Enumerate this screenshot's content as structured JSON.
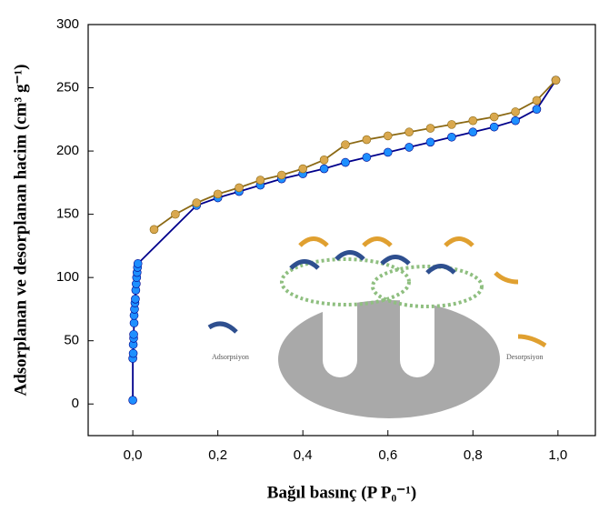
{
  "chart_data": {
    "type": "line",
    "x_label": "Bağıl basınç (P P₀⁻¹)",
    "y_label": "Adsorplanan ve desorplanan hacim (cm³ g⁻¹)",
    "xlim": [
      -0.105,
      1.088
    ],
    "ylim": [
      -25,
      300
    ],
    "xticks": [
      {
        "value": 0,
        "label": "0,0"
      },
      {
        "value": 0.2,
        "label": "0,2"
      },
      {
        "value": 0.4,
        "label": "0,4"
      },
      {
        "value": 0.6,
        "label": "0,6"
      },
      {
        "value": 0.8,
        "label": "0,8"
      },
      {
        "value": 1,
        "label": "1,0"
      }
    ],
    "yticks": [
      0,
      50,
      100,
      150,
      200,
      250,
      300
    ],
    "annotations": [
      "Adsorpsiyon",
      "Desorpsiyon"
    ],
    "series": [
      {
        "color": "#1e8fff",
        "line_color": "#00008b",
        "x": [
          0,
          0,
          0.001,
          0.001,
          0.002,
          0.002,
          0.003,
          0.003,
          0.004,
          0.005,
          0.006,
          0.007,
          0.008,
          0.009,
          0.01,
          0.011,
          0.012,
          0.15,
          0.2,
          0.25,
          0.3,
          0.35,
          0.4,
          0.45,
          0.5,
          0.55,
          0.6,
          0.65,
          0.7,
          0.75,
          0.8,
          0.85,
          0.9,
          0.95,
          0.995
        ],
        "values": [
          3,
          36,
          40,
          47,
          52,
          55,
          64,
          70,
          75,
          80,
          83,
          90,
          95,
          100,
          104,
          108,
          111,
          157,
          163,
          168,
          173,
          178,
          182,
          186,
          191,
          195,
          199,
          203,
          207,
          211,
          215,
          219,
          224,
          233,
          256
        ]
      },
      {
        "color": "#d9a84e",
        "line_color": "#8b6914",
        "x": [
          0.05,
          0.1,
          0.15,
          0.2,
          0.25,
          0.3,
          0.35,
          0.4,
          0.45,
          0.5,
          0.55,
          0.6,
          0.65,
          0.7,
          0.75,
          0.8,
          0.85,
          0.9,
          0.95,
          0.995
        ],
        "values": [
          138,
          150,
          159,
          166,
          171,
          177,
          181,
          186,
          193,
          205,
          209,
          212,
          215,
          218,
          221,
          224,
          227,
          231,
          240,
          256
        ]
      }
    ]
  }
}
